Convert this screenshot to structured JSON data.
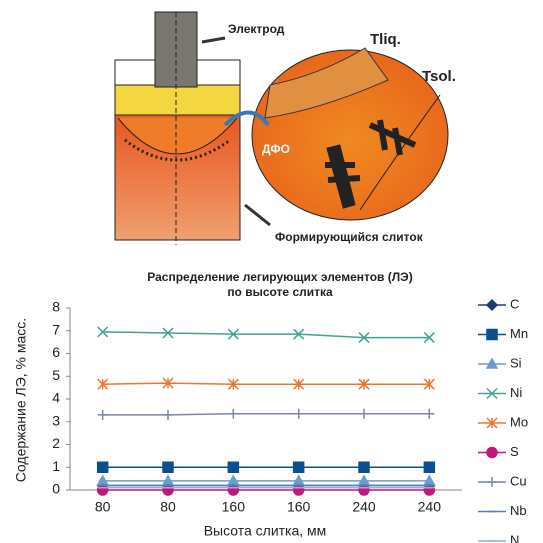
{
  "diagram": {
    "electrode": "Электрод",
    "t_liq": "Tliq.",
    "t_sol": "Tsol.",
    "zone": "ДФО",
    "ingot": "Формирующийся слиток"
  },
  "chart_data": {
    "type": "line",
    "title": [
      "Распределение легирующих элементов  (ЛЭ)",
      "по высоте слитка"
    ],
    "x_label": "Высота слитка, мм",
    "y_label": "Содержание  ЛЭ, % масс.",
    "categories": [
      "80",
      "80",
      "160",
      "160",
      "240",
      "240"
    ],
    "ylim": [
      0,
      8
    ],
    "yticks": [
      0,
      1,
      2,
      3,
      4,
      5,
      6,
      7,
      8
    ],
    "legend": "right",
    "series": [
      {
        "name": "C",
        "color": "#1f3a7a",
        "marker": "diamond",
        "values": [
          0.2,
          0.2,
          0.2,
          0.2,
          0.2,
          0.2
        ]
      },
      {
        "name": "Mn",
        "color": "#0b4f8f",
        "marker": "square",
        "values": [
          1.0,
          1.0,
          1.0,
          1.0,
          1.0,
          1.0
        ]
      },
      {
        "name": "Si",
        "color": "#6a9bd1",
        "marker": "triangle",
        "values": [
          0.4,
          0.4,
          0.4,
          0.4,
          0.4,
          0.4
        ]
      },
      {
        "name": "Ni",
        "color": "#3fa394",
        "marker": "x",
        "values": [
          6.95,
          6.9,
          6.85,
          6.85,
          6.7,
          6.7
        ]
      },
      {
        "name": "Mo",
        "color": "#e8772e",
        "marker": "asterisk",
        "values": [
          4.65,
          4.7,
          4.65,
          4.65,
          4.65,
          4.65
        ]
      },
      {
        "name": "S",
        "color": "#c0187a",
        "marker": "circle",
        "values": [
          0.0,
          0.0,
          0.0,
          0.0,
          0.0,
          0.0
        ]
      },
      {
        "name": "Cu",
        "color": "#7d86a8",
        "marker": "plus",
        "values": [
          3.3,
          3.3,
          3.35,
          3.35,
          3.35,
          3.35
        ]
      },
      {
        "name": "Nb",
        "color": "#5b7fae",
        "marker": "dash",
        "values": [
          0.2,
          0.2,
          0.2,
          0.2,
          0.2,
          0.2
        ]
      },
      {
        "name": "N",
        "color": "#8fb4e0",
        "marker": "dash",
        "values": [
          0.1,
          0.1,
          0.1,
          0.1,
          0.1,
          0.1
        ]
      }
    ]
  }
}
